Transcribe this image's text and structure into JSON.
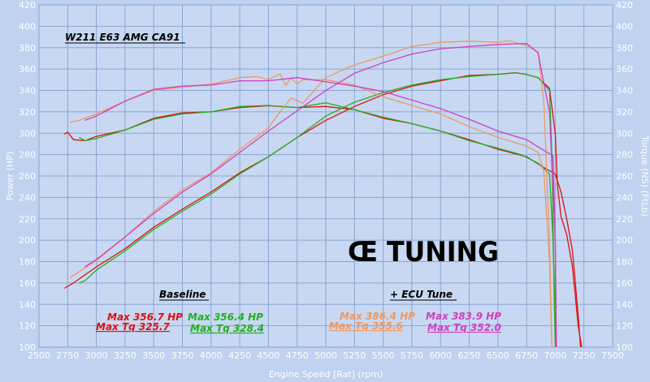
{
  "chart_data": {
    "type": "line",
    "title": "W211 E63 AMG CA91",
    "xlabel": "Engine Speed [Rat] (rpm)",
    "ylabel_left": "Power (HP)",
    "ylabel_right": "Torque (NS) (FtLb)",
    "xlim": [
      2500,
      7500
    ],
    "ylim": [
      100,
      420
    ],
    "grid": true,
    "x_ticks": [
      2500,
      2750,
      3000,
      3250,
      3500,
      3750,
      4000,
      4250,
      4500,
      4750,
      5000,
      5250,
      5500,
      5750,
      6000,
      6250,
      6500,
      6750,
      7000,
      7250,
      7500
    ],
    "y_ticks": [
      100,
      120,
      140,
      160,
      180,
      200,
      220,
      240,
      260,
      280,
      300,
      320,
      340,
      360,
      380,
      400,
      420
    ],
    "logo": "Œ TUNING",
    "series": [
      {
        "name": "Baseline HP (red)",
        "color": "#e01010",
        "x": [
          2720,
          2800,
          3000,
          3250,
          3500,
          3750,
          4000,
          4250,
          4500,
          4750,
          5000,
          5250,
          5500,
          5750,
          6000,
          6250,
          6500,
          6650,
          6750,
          6850,
          6950,
          7000,
          7020,
          7050,
          7100,
          7150,
          7200,
          7230
        ],
        "y": [
          155,
          160,
          175,
          192,
          212,
          229,
          245,
          263,
          278,
          296,
          312,
          325,
          336,
          344,
          349,
          354,
          355,
          356.5,
          355,
          352,
          342,
          300,
          250,
          222,
          205,
          175,
          120,
          100
        ]
      },
      {
        "name": "Baseline Torque (red)",
        "color": "#e01010",
        "x": [
          2720,
          2750,
          2800,
          2900,
          3000,
          3250,
          3500,
          3750,
          4000,
          4250,
          4500,
          4750,
          5000,
          5250,
          5500,
          5750,
          6000,
          6250,
          6500,
          6750,
          6900,
          7000,
          7050,
          7100,
          7150,
          7200,
          7220
        ],
        "y": [
          299,
          301,
          294,
          293,
          297,
          303,
          314,
          319,
          320,
          324,
          325.7,
          324,
          325,
          322,
          314,
          309,
          302,
          294,
          285,
          278,
          268,
          262,
          245,
          220,
          190,
          130,
          100
        ]
      },
      {
        "name": "Baseline HP (green)",
        "color": "#20b020",
        "x": [
          2850,
          2900,
          3000,
          3250,
          3500,
          3750,
          4000,
          4250,
          4500,
          4750,
          5000,
          5250,
          5500,
          5750,
          6000,
          6250,
          6500,
          6650,
          6750,
          6850,
          6950,
          6970,
          6980,
          6990,
          7000
        ],
        "y": [
          160,
          162,
          172,
          190,
          210,
          227,
          243,
          262,
          278,
          296,
          316,
          329,
          338,
          345,
          350,
          353,
          355,
          356.4,
          355,
          352,
          340,
          280,
          220,
          150,
          100
        ]
      },
      {
        "name": "Baseline Torque (green)",
        "color": "#20b020",
        "x": [
          2850,
          2900,
          3000,
          3250,
          3500,
          3750,
          4000,
          4250,
          4500,
          4750,
          5000,
          5250,
          5500,
          5750,
          6000,
          6250,
          6500,
          6700,
          6850,
          6950,
          6980,
          7000,
          7010
        ],
        "y": [
          296,
          293,
          295,
          303,
          313,
          318,
          320,
          325,
          326,
          324,
          328.4,
          322,
          315,
          309,
          302,
          293,
          286,
          280,
          272,
          262,
          200,
          130,
          100
        ]
      },
      {
        "name": "ECU Tune HP (orange)",
        "color": "#f09860",
        "x": [
          2770,
          2800,
          3000,
          3250,
          3500,
          3750,
          4000,
          4250,
          4500,
          4600,
          4700,
          4800,
          5000,
          5250,
          5500,
          5750,
          6000,
          6250,
          6500,
          6600,
          6750,
          6850,
          6900,
          6950,
          6970
        ],
        "y": [
          165,
          167,
          181,
          203,
          227,
          247,
          263,
          285,
          305,
          320,
          333,
          328,
          352,
          364,
          372,
          381,
          385,
          386,
          385,
          386.4,
          382,
          376,
          330,
          200,
          100
        ]
      },
      {
        "name": "ECU Tune Torque (orange)",
        "color": "#f09860",
        "x": [
          2770,
          2850,
          3000,
          3250,
          3500,
          3750,
          4000,
          4250,
          4400,
          4500,
          4600,
          4650,
          4700,
          4750,
          4800,
          5000,
          5250,
          5500,
          5750,
          6000,
          6250,
          6500,
          6750,
          6850,
          6900,
          6950,
          6970
        ],
        "y": [
          310,
          312,
          318,
          330,
          340,
          343,
          346,
          352,
          353,
          350,
          355.6,
          345,
          352,
          346,
          350,
          350,
          345,
          334,
          326,
          318,
          306,
          296,
          288,
          282,
          265,
          180,
          100
        ]
      },
      {
        "name": "ECU Tune HP (magenta)",
        "color": "#d040c0",
        "x": [
          2900,
          3000,
          3250,
          3500,
          3750,
          4000,
          4250,
          4500,
          4750,
          5000,
          5250,
          5500,
          5750,
          6000,
          6250,
          6500,
          6750,
          6850,
          6950,
          7000,
          7010
        ],
        "y": [
          175,
          182,
          203,
          225,
          245,
          262,
          282,
          302,
          321,
          340,
          356,
          366,
          374,
          379,
          381,
          383,
          383.9,
          375,
          320,
          200,
          100
        ]
      },
      {
        "name": "ECU Tune Torque (magenta)",
        "color": "#d040c0",
        "x": [
          2900,
          3000,
          3250,
          3500,
          3750,
          4000,
          4250,
          4500,
          4750,
          5000,
          5250,
          5500,
          5750,
          6000,
          6250,
          6500,
          6750,
          6900,
          6980,
          7000,
          7010
        ],
        "y": [
          312,
          316,
          330,
          341,
          344,
          345,
          349,
          349,
          352,
          348,
          344,
          339,
          331,
          323,
          313,
          302,
          294,
          284,
          279,
          200,
          100
        ]
      }
    ],
    "annotations": {
      "baseline_heading": "Baseline",
      "tune_heading": "+ ECU Tune",
      "red_hp": "Max 356.7 HP",
      "red_tq": "Max Tq 325.7",
      "green_hp": "Max 356.4 HP",
      "green_tq": "Max Tq 328.4",
      "orange_hp": "Max 386.4 HP",
      "orange_tq": "Max Tq 355.6",
      "magenta_hp": "Max 383.9 HP",
      "magenta_tq": "Max Tq 352.0"
    },
    "annotation_colors": {
      "red": "#e01010",
      "green": "#20b020",
      "orange": "#f09860",
      "magenta": "#d040c0",
      "heading": "#000000"
    }
  }
}
